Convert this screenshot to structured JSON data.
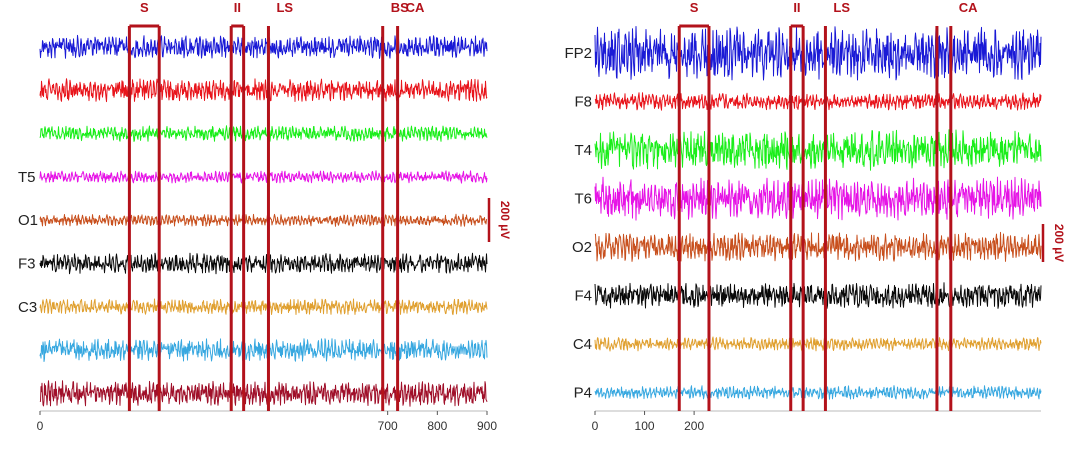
{
  "chart_data": [
    {
      "type": "line",
      "panel": "left",
      "x_ticks": [
        0,
        700,
        800,
        900
      ],
      "xlim": [
        0,
        900
      ],
      "channels": [
        {
          "label": "",
          "color": "#1a1ad6",
          "amplitude": 0.45,
          "noise": 1.0
        },
        {
          "label": "",
          "color": "#e8141b",
          "amplitude": 0.45,
          "noise": 1.0
        },
        {
          "label": "",
          "color": "#1aee1a",
          "amplitude": 0.35,
          "noise": 0.8
        },
        {
          "label": "T5",
          "color": "#e614e6",
          "amplitude": 0.3,
          "noise": 0.7
        },
        {
          "label": "O1",
          "color": "#c8501e",
          "amplitude": 0.3,
          "noise": 0.7
        },
        {
          "label": "F3",
          "color": "#0a0a0a",
          "amplitude": 0.4,
          "noise": 1.0
        },
        {
          "label": "C3",
          "color": "#e0a030",
          "amplitude": 0.35,
          "noise": 0.8
        },
        {
          "label": "",
          "color": "#38a8e0",
          "amplitude": 0.45,
          "noise": 1.0
        },
        {
          "label": "",
          "color": "#a0102a",
          "amplitude": 0.5,
          "noise": 1.0
        }
      ],
      "events": [
        {
          "label": "S",
          "x_start": 180,
          "x_end": 240
        },
        {
          "label": "II",
          "x_start": 385,
          "x_end": 410
        },
        {
          "label": "LS",
          "x_start": 460,
          "x_end": 460
        },
        {
          "label": "BS",
          "x_start": 690,
          "x_end": 690
        },
        {
          "label": "CA",
          "x_start": 720,
          "x_end": 720
        }
      ],
      "scale_bar": "200 µV"
    },
    {
      "type": "line",
      "panel": "right",
      "x_ticks": [
        0,
        100,
        200
      ],
      "xlim": [
        0,
        900
      ],
      "channels": [
        {
          "label": "FP2",
          "color": "#1a1ad6",
          "amplitude": 0.95,
          "noise": 1.0
        },
        {
          "label": "F8",
          "color": "#e8141b",
          "amplitude": 0.35,
          "noise": 0.8
        },
        {
          "label": "T4",
          "color": "#1aee1a",
          "amplitude": 0.7,
          "noise": 1.0
        },
        {
          "label": "T6",
          "color": "#e614e6",
          "amplitude": 0.75,
          "noise": 1.0
        },
        {
          "label": "O2",
          "color": "#c8501e",
          "amplitude": 0.55,
          "noise": 0.9
        },
        {
          "label": "F4",
          "color": "#0a0a0a",
          "amplitude": 0.45,
          "noise": 1.0
        },
        {
          "label": "C4",
          "color": "#e0a030",
          "amplitude": 0.3,
          "noise": 0.7
        },
        {
          "label": "P4",
          "color": "#38a8e0",
          "amplitude": 0.3,
          "noise": 0.7
        }
      ],
      "events": [
        {
          "label": "S",
          "x_start": 170,
          "x_end": 230
        },
        {
          "label": "II",
          "x_start": 395,
          "x_end": 420
        },
        {
          "label": "LS",
          "x_start": 465,
          "x_end": 465
        },
        {
          "label": "",
          "x_start": 690,
          "x_end": 690
        },
        {
          "label": "CA",
          "x_start": 718,
          "x_end": 718
        }
      ],
      "scale_bar": "200 µV"
    }
  ]
}
